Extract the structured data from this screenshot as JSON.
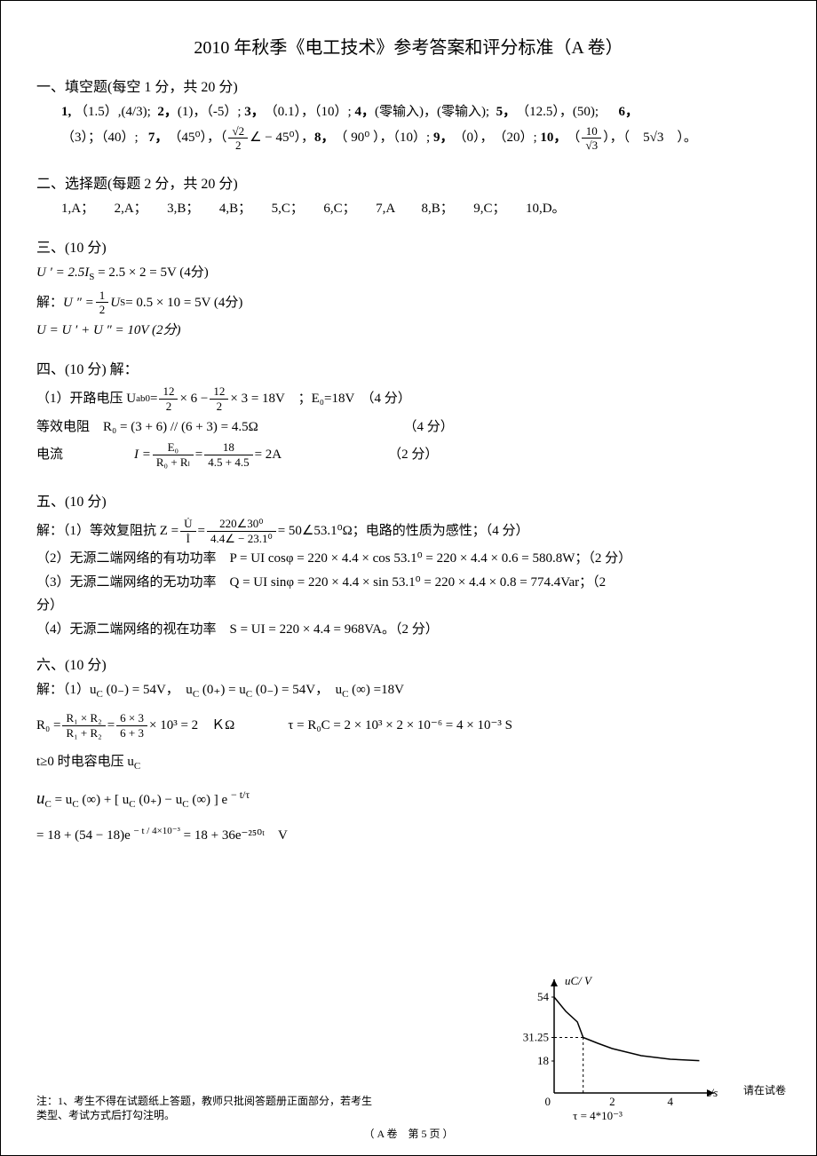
{
  "title": "2010 年秋季《电工技术》参考答案和评分标准（A 卷）",
  "s1": {
    "header": "一、填空题(每空 1 分，共 20 分)",
    "line1_prefix": "1,",
    "a1": "（1.5）,(4/3);",
    "n2": "2，",
    "a2": "(1)，（-5）;",
    "n3": "3，",
    "a3": "（0.1），（10）;",
    "n4": "4，",
    "a4": "(零输入)，(零输入);",
    "n5": "5，",
    "a5": "（12.5），(50);",
    "n6": "6，",
    "line2_a6": "（3）；（40）;",
    "n7": "7，",
    "a7a": "（45⁰），（",
    "a7b": " ∠ − 45⁰），",
    "n8": "8，",
    "a8": "（ 90⁰ ），（10）;",
    "n9": "9，",
    "a9": "（0），　（20）;",
    "n10": "10，",
    "a10a": "（",
    "a10b": "），（　5",
    "a10c": "　）。",
    "sqrt2_over2_num": "√2",
    "sqrt2_over2_den": "2",
    "ten_over_sqrt3_num": "10",
    "ten_over_sqrt3_den": "√3",
    "sqrt3": "√3"
  },
  "s2": {
    "header": "二、选择题(每题 2 分，共 20 分)",
    "answers": "1,A；　　2,A；　　3,B；　　4,B；　　5,C；　　6,C；　　7,A　　8,B；　　9,C；　　10,D。"
  },
  "s3": {
    "header": "三、(10 分)",
    "l1": "U ′ = 2.5I",
    "l1b": " = 2.5 × 2 = 5V (4分)",
    "l2_pre": "解：",
    "l2": "U ″ = ",
    "l2_frac_n": "1",
    "l2_frac_d": "2",
    "l2b": "U",
    "l2c": " = 0.5 × 10 = 5V (4分)",
    "l3": "U = U ′ + U ″ = 10V (2分)",
    "sub_s": "S"
  },
  "s4": {
    "header": "四、(10 分) 解：",
    "l1_pre": "（1）开路电压 U",
    "l1_sub": "ab0",
    "l1_eq": " = ",
    "f1n": "12",
    "f1d": "2",
    "l1_mid": " × 6 − ",
    "f2n": "12",
    "f2d": "2",
    "l1_post": " × 3 = 18V　；E₀=18V　（4 分）",
    "l2": "等效电阻　R₀ = (3 + 6) // (6 + 3) = 4.5Ω",
    "l2_pts": "（4 分）",
    "l3_pre": "电流",
    "l3_mid": "I = ",
    "f3n": "E₀",
    "f3d": "R₀ + Rₗ",
    "l3_eq": " = ",
    "f4n": "18",
    "f4d": "4.5 + 4.5",
    "l3_post": " = 2A",
    "l3_pts": "（2 分）"
  },
  "s5": {
    "header": "五、(10 分)",
    "l1_pre": "解：（1）等效复阻抗 Z = ",
    "f1n": "U̇",
    "f1d": "İ",
    "l1_eq": " = ",
    "f2n": "220∠30⁰",
    "f2d": "4.4∠ − 23.1⁰",
    "l1_post": " = 50∠53.1⁰Ω；电路的性质为感性；（4 分）",
    "l2": "（2）无源二端网络的有功功率　P = UI cosφ = 220 × 4.4 × cos 53.1⁰ = 220 × 4.4 × 0.6 = 580.8W；（2 分）",
    "l3": "（3）无源二端网络的无功功率　Q = UI sinφ = 220 × 4.4 × sin 53.1⁰ = 220 × 4.4 × 0.8 = 774.4Var；（2",
    "l3b": "分）",
    "l4": "（4）无源二端网络的视在功率　S = UI = 220 × 4.4 = 968VA。（2 分）"
  },
  "s6": {
    "header": "六、(10 分)",
    "l1": "解：（1）u",
    "l1a": "(0₋) = 54V，　u",
    "l1b": "(0₊) = u",
    "l1c": "(0₋) = 54V，　u",
    "l1d": "(∞) =18V",
    "sub_c": "C",
    "l2_pre": "R₀ = ",
    "f1n": "R₁ × R₂",
    "f1d": "R₁ + R₂",
    "l2_eq": " = ",
    "f2n": "6 × 3",
    "f2d": "6 + 3",
    "l2_post": " × 10³ = 2　ＫΩ",
    "l2_tau": "τ = R₀C = 2 × 10³ × 2 × 10⁻⁶ = 4 × 10⁻³ S",
    "l3": "t≥0 时电容电压 u",
    "l4_pre": "u",
    "l4_a": " = u",
    "l4_b": "(∞) + [ u",
    "l4_c": "(0₊) − u",
    "l4_d": "(∞) ] e",
    "l4_exp": "− t/τ",
    "l5_a": "= 18 + (54 − 18)e",
    "l5_exp": "− t / 4×10⁻³",
    "l5_b": " = 18 + 36e⁻²⁵⁰ᵗ　V"
  },
  "footer": {
    "note": "注：1、考生不得在试题纸上答题，教师只批阅答题册正面部分，若考生",
    "note2": "类型、考试方式后打勾注明。",
    "page": "（ A 卷　第 5 页 ）",
    "right": "请在试卷"
  },
  "chart": {
    "type": "line",
    "x_axis_label": "t/s",
    "y_axis_label": "uC/ V",
    "y_ticks": [
      18,
      31.25,
      54
    ],
    "x_ticks": [
      2,
      4
    ],
    "tau_label": "τ = 4*10⁻³",
    "axis_color": "#000000",
    "curve_color": "#000000",
    "dash_color": "#000000",
    "background_color": "#ffffff",
    "font_size": 13,
    "curve_points_x": [
      0,
      0.4,
      0.8,
      1.0,
      1.5,
      2.0,
      3.0,
      4.0,
      5.0
    ],
    "curve_points_y": [
      54,
      46,
      40,
      31.25,
      28,
      25,
      21,
      19,
      18.2
    ]
  }
}
